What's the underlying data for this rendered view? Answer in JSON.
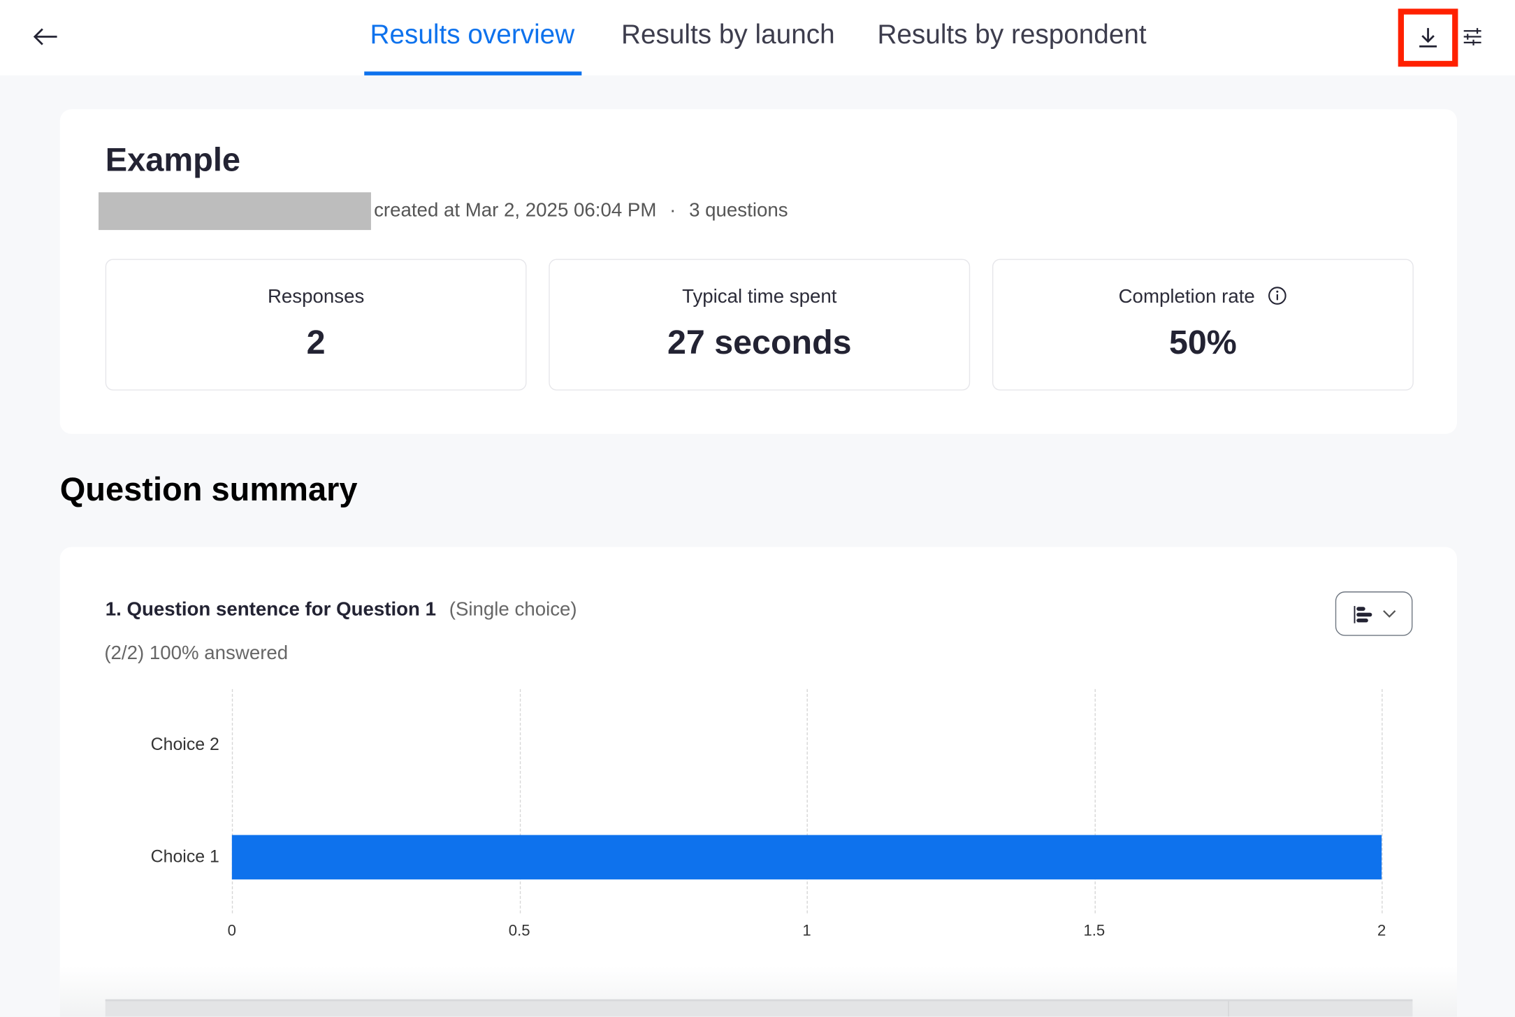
{
  "header": {
    "back_icon": "arrow-left-icon",
    "tabs": [
      {
        "label": "Results overview",
        "active": true
      },
      {
        "label": "Results by launch",
        "active": false
      },
      {
        "label": "Results by respondent",
        "active": false
      }
    ],
    "download_icon": "download-icon",
    "settings_icon": "sliders-icon",
    "accent_color": "#0e72ed",
    "highlight_color": "#ff2000"
  },
  "overview": {
    "title": "Example",
    "meta": "created at Mar 2, 2025 06:04 PM",
    "separator": "·",
    "questions": "3 questions",
    "stats": [
      {
        "label": "Responses",
        "value": "2"
      },
      {
        "label": "Typical time spent",
        "value": "27 seconds"
      },
      {
        "label": "Completion rate",
        "value": "50%",
        "icon": "info-icon"
      }
    ]
  },
  "summary": {
    "heading": "Question summary",
    "questions": [
      {
        "title": "1. Question sentence for Question 1",
        "type": "(Single choice)",
        "answered": "(2/2) 100% answered",
        "chart_toggle_icon": "bar-chart-icon"
      }
    ]
  },
  "chart_data": {
    "type": "bar",
    "orientation": "horizontal",
    "categories": [
      "Choice 2",
      "Choice 1"
    ],
    "values": [
      0,
      2
    ],
    "xlim": [
      0,
      2
    ],
    "x_ticks": [
      "0",
      "0.5",
      "1",
      "1.5",
      "2"
    ],
    "grid": true,
    "bar_color": "#0e72ed"
  }
}
